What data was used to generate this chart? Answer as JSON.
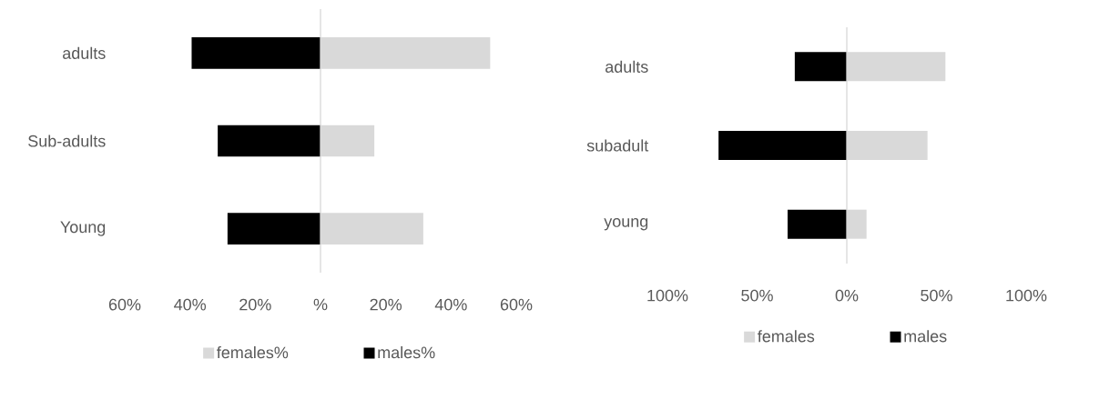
{
  "chart_data": [
    {
      "type": "bar",
      "orientation": "horizontal",
      "stacked": true,
      "categories": [
        "adults",
        "Sub-adults",
        "Young"
      ],
      "series": [
        {
          "name": "females%",
          "color": "#d9d9d9",
          "values": [
            52,
            16.5,
            31.5
          ]
        },
        {
          "name": "males%",
          "color": "#000000",
          "values": [
            -39.5,
            -31.5,
            -28.5
          ]
        }
      ],
      "xlim": [
        -60,
        60
      ],
      "xticks": [
        {
          "value": -60,
          "label": "60%"
        },
        {
          "value": -40,
          "label": "40%"
        },
        {
          "value": -20,
          "label": "20%"
        },
        {
          "value": 0,
          "label": "%"
        },
        {
          "value": 20,
          "label": "20%"
        },
        {
          "value": 40,
          "label": "40%"
        },
        {
          "value": 60,
          "label": "60%"
        }
      ],
      "legend": "bottom"
    },
    {
      "type": "bar",
      "orientation": "horizontal",
      "stacked": true,
      "categories": [
        "adults",
        "subadult",
        "young"
      ],
      "series": [
        {
          "name": "females",
          "color": "#d9d9d9",
          "values": [
            55,
            45,
            11
          ]
        },
        {
          "name": "males",
          "color": "#000000",
          "values": [
            -29,
            -71.5,
            -33
          ]
        }
      ],
      "xlim": [
        -100,
        100
      ],
      "xticks": [
        {
          "value": -100,
          "label": "100%"
        },
        {
          "value": -50,
          "label": "50%"
        },
        {
          "value": 0,
          "label": "0%"
        },
        {
          "value": 50,
          "label": "50%"
        },
        {
          "value": 100,
          "label": "100%"
        }
      ],
      "legend": "bottom"
    }
  ]
}
